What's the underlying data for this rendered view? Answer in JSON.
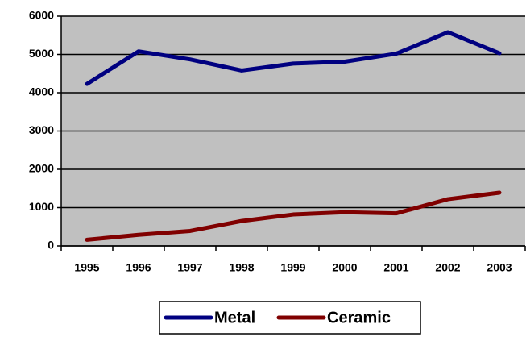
{
  "chart_data": {
    "type": "line",
    "categories": [
      "1995",
      "1996",
      "1997",
      "1998",
      "1999",
      "2000",
      "2001",
      "2002",
      "2003"
    ],
    "series": [
      {
        "name": "Metal",
        "color": "#000080",
        "values": [
          4230,
          5080,
          4870,
          4580,
          4760,
          4810,
          5020,
          5580,
          5030
        ]
      },
      {
        "name": "Ceramic",
        "color": "#800000",
        "values": [
          160,
          290,
          390,
          650,
          820,
          880,
          850,
          1220,
          1390
        ]
      }
    ],
    "ylim": [
      0,
      6000
    ],
    "yticks": [
      0,
      1000,
      2000,
      3000,
      4000,
      5000,
      6000
    ],
    "grid": true,
    "legend": "bottom",
    "plot_background": "#c0c0c0"
  }
}
